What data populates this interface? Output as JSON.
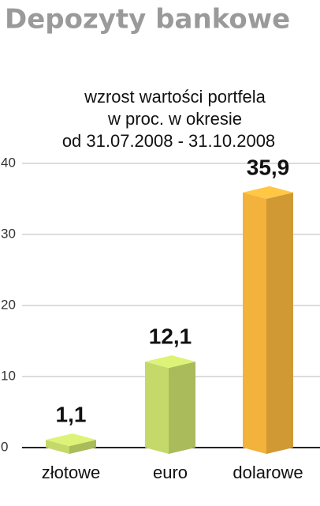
{
  "chart_data": {
    "type": "bar3d",
    "title": "Depozyty bankowe",
    "subtitle": [
      "wzrost wartości portfela",
      "w proc. w okresie",
      "od 31.07.2008 - 31.10.2008"
    ],
    "categories": [
      "złotowe",
      "euro",
      "dolarowe"
    ],
    "values": [
      1.1,
      12.1,
      35.9
    ],
    "value_labels": [
      "1,1",
      "12,1",
      "35,9"
    ],
    "colors": [
      "#c5d96a",
      "#c5d96a",
      "#f2b23c"
    ],
    "ylim": [
      0,
      40
    ],
    "yticks": [
      0,
      10,
      20,
      30,
      40
    ],
    "grid": true
  }
}
